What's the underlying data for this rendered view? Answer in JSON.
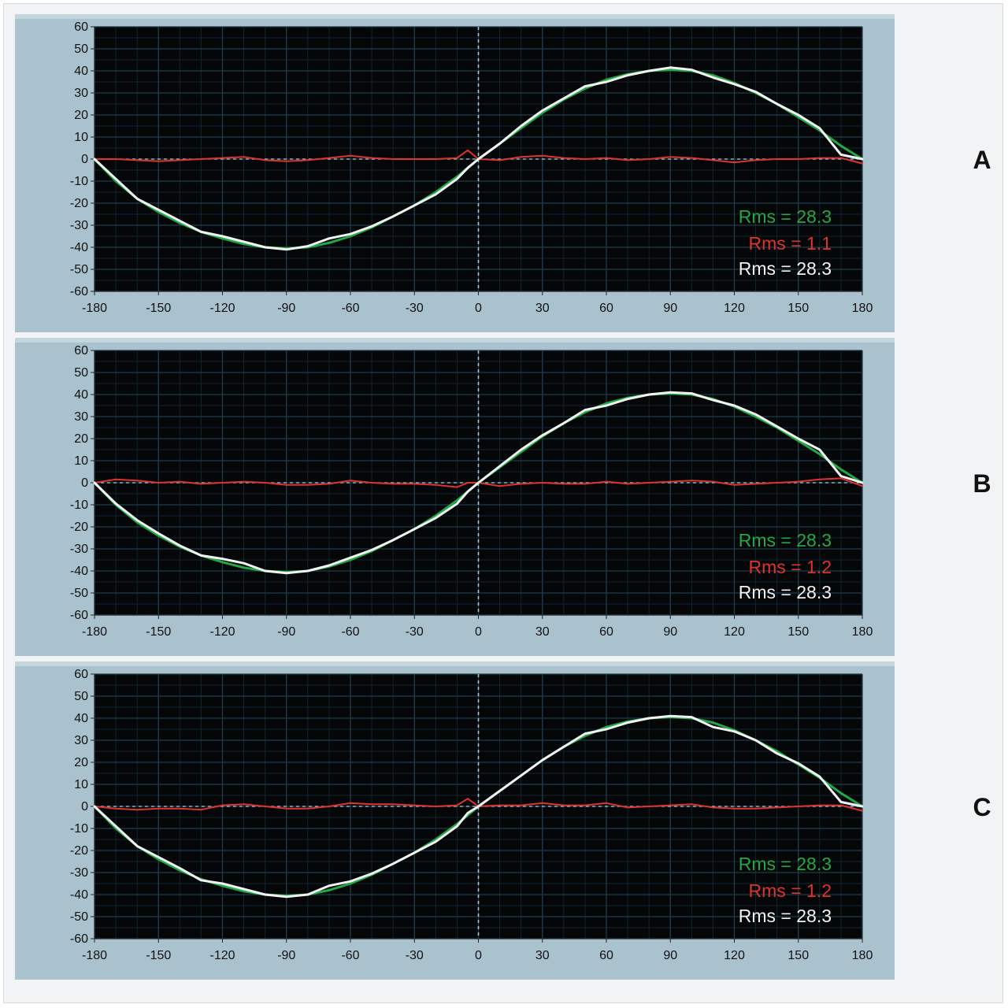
{
  "figure": {
    "panel_labels": [
      "A",
      "B",
      "C"
    ]
  },
  "colors": {
    "plot_background": "#050607",
    "frame": "#a9c2ce",
    "grid": "#1d3e4c",
    "green": "#22a845",
    "red": "#e0332e",
    "white": "#f2f2f2",
    "zero_line": "#9fc7d9"
  },
  "chart_data": [
    {
      "type": "line",
      "panel": "A",
      "xlim": [
        -180,
        180
      ],
      "ylim": [
        -60,
        60
      ],
      "xticks": [
        -180,
        -150,
        -120,
        -90,
        -60,
        -30,
        0,
        30,
        60,
        90,
        120,
        150,
        180
      ],
      "yticks": [
        60,
        50,
        40,
        30,
        20,
        10,
        0,
        -10,
        -20,
        -30,
        -40,
        -50,
        -60
      ],
      "grid": true,
      "x": [
        -180,
        -170,
        -160,
        -150,
        -140,
        -130,
        -120,
        -110,
        -100,
        -90,
        -80,
        -70,
        -60,
        -50,
        -40,
        -30,
        -20,
        -10,
        -5,
        0,
        10,
        20,
        30,
        40,
        50,
        60,
        70,
        80,
        90,
        100,
        110,
        120,
        130,
        140,
        150,
        160,
        170,
        180
      ],
      "series": [
        {
          "color": "green",
          "values": [
            0,
            -10,
            -18,
            -24,
            -29,
            -33,
            -36,
            -38.5,
            -40,
            -40.5,
            -40,
            -38,
            -35,
            -31,
            -26,
            -21,
            -15,
            -8,
            -4,
            0,
            7,
            14,
            21,
            27,
            32,
            36,
            38.5,
            40,
            40.5,
            40,
            38,
            34.5,
            30,
            25,
            19,
            13,
            6,
            0
          ]
        },
        {
          "color": "red",
          "values": [
            0,
            0,
            -0.5,
            -1,
            -0.5,
            0,
            0.5,
            1,
            -0.5,
            -1,
            -0.5,
            0.5,
            1.5,
            0.5,
            0,
            0,
            0,
            0.5,
            4,
            0,
            -0.5,
            1,
            1.5,
            0.5,
            0,
            0.5,
            -0.5,
            0,
            1,
            0.5,
            -0.5,
            -1.5,
            -0.5,
            0,
            0,
            0.5,
            0.5,
            -2
          ]
        },
        {
          "color": "white",
          "values": [
            0,
            -9,
            -18,
            -23,
            -28,
            -33,
            -35,
            -37.5,
            -40,
            -41,
            -39.5,
            -36,
            -34,
            -30.5,
            -26,
            -21,
            -16,
            -9,
            -4,
            0,
            7,
            15,
            22,
            27.5,
            33,
            35,
            38,
            40,
            41.5,
            40.5,
            37,
            34,
            30.5,
            25,
            20,
            14,
            2,
            0
          ]
        }
      ],
      "annotations": [
        {
          "text": "Rms = 28.3",
          "color": "green"
        },
        {
          "text": "Rms = 1.1",
          "color": "red"
        },
        {
          "text": "Rms = 28.3",
          "color": "white"
        }
      ]
    },
    {
      "type": "line",
      "panel": "B",
      "xlim": [
        -180,
        180
      ],
      "ylim": [
        -60,
        60
      ],
      "xticks": [
        -180,
        -150,
        -120,
        -90,
        -60,
        -30,
        0,
        30,
        60,
        90,
        120,
        150,
        180
      ],
      "yticks": [
        60,
        50,
        40,
        30,
        20,
        10,
        0,
        -10,
        -20,
        -30,
        -40,
        -50,
        -60
      ],
      "grid": true,
      "x": [
        -180,
        -170,
        -160,
        -150,
        -140,
        -130,
        -120,
        -110,
        -100,
        -90,
        -80,
        -70,
        -60,
        -50,
        -40,
        -30,
        -20,
        -10,
        -5,
        0,
        10,
        20,
        30,
        40,
        50,
        60,
        70,
        80,
        90,
        100,
        110,
        120,
        130,
        140,
        150,
        160,
        170,
        180
      ],
      "series": [
        {
          "color": "green",
          "values": [
            0,
            -10,
            -18,
            -24,
            -29,
            -33,
            -36,
            -38.5,
            -40,
            -40.5,
            -40,
            -38,
            -35,
            -31,
            -26,
            -21,
            -15,
            -8,
            -4,
            0,
            7,
            14,
            21,
            27,
            32,
            36,
            38.5,
            40,
            40.5,
            40,
            38,
            34.5,
            30,
            25,
            19,
            13,
            6,
            0
          ]
        },
        {
          "color": "red",
          "values": [
            0,
            1.5,
            1,
            0,
            0.5,
            -0.5,
            0,
            0.5,
            0,
            -1,
            -1,
            -0.5,
            1,
            0,
            -0.5,
            -0.5,
            -1,
            -2,
            0,
            0,
            -1.5,
            -0.5,
            0,
            -0.5,
            -0.5,
            0.5,
            -0.5,
            0,
            0.5,
            1,
            0.5,
            -1,
            -0.5,
            0,
            0.5,
            1.5,
            2,
            -1.5
          ]
        },
        {
          "color": "white",
          "values": [
            0,
            -9.5,
            -17,
            -23,
            -28.5,
            -33,
            -34.5,
            -36.5,
            -40,
            -41,
            -40,
            -37.5,
            -34,
            -30.5,
            -26,
            -21,
            -16,
            -9.5,
            -4,
            0,
            7.5,
            15,
            21.5,
            27,
            33,
            35,
            38,
            40,
            41,
            40.5,
            37.5,
            35,
            31,
            25.5,
            20,
            15,
            3,
            0
          ]
        }
      ],
      "annotations": [
        {
          "text": "Rms = 28.3",
          "color": "green"
        },
        {
          "text": "Rms = 1.2",
          "color": "red"
        },
        {
          "text": "Rms = 28.3",
          "color": "white"
        }
      ]
    },
    {
      "type": "line",
      "panel": "C",
      "xlim": [
        -180,
        180
      ],
      "ylim": [
        -60,
        60
      ],
      "xticks": [
        -180,
        -150,
        -120,
        -90,
        -60,
        -30,
        0,
        30,
        60,
        90,
        120,
        150,
        180
      ],
      "yticks": [
        60,
        50,
        40,
        30,
        20,
        10,
        0,
        -10,
        -20,
        -30,
        -40,
        -50,
        -60
      ],
      "grid": true,
      "x": [
        -180,
        -170,
        -160,
        -150,
        -140,
        -130,
        -120,
        -110,
        -100,
        -90,
        -80,
        -70,
        -60,
        -50,
        -40,
        -30,
        -20,
        -10,
        -5,
        0,
        10,
        20,
        30,
        40,
        50,
        60,
        70,
        80,
        90,
        100,
        110,
        120,
        130,
        140,
        150,
        160,
        170,
        180
      ],
      "series": [
        {
          "color": "green",
          "values": [
            0,
            -10,
            -18,
            -24,
            -29,
            -33,
            -36,
            -38.5,
            -40,
            -40.5,
            -40,
            -38,
            -35,
            -31,
            -26,
            -21,
            -15,
            -8,
            -4,
            0,
            7,
            14,
            21,
            27,
            32,
            36,
            38.5,
            40,
            40.5,
            40,
            38,
            34.5,
            30,
            25,
            19,
            13,
            6,
            0
          ]
        },
        {
          "color": "red",
          "values": [
            0,
            -1,
            -1.5,
            -1,
            -1,
            -1.5,
            0.5,
            1,
            0,
            -1,
            -1,
            0,
            1.5,
            1,
            1,
            0.5,
            0,
            0.5,
            3.5,
            0,
            0.5,
            0.5,
            1.5,
            0.5,
            0.5,
            1.5,
            -0.5,
            0,
            0.5,
            1,
            -0.5,
            -1,
            -1,
            -0.5,
            0,
            0.5,
            0.5,
            -2
          ]
        },
        {
          "color": "white",
          "values": [
            0,
            -9,
            -18,
            -23,
            -28,
            -33.5,
            -35,
            -37.5,
            -40,
            -41,
            -40,
            -36,
            -34,
            -30.5,
            -26,
            -21,
            -16,
            -9,
            -3,
            0,
            7,
            14,
            21,
            27,
            33,
            35,
            38,
            40,
            41,
            40.5,
            36,
            34,
            30,
            24,
            19.5,
            13.5,
            2,
            0
          ]
        }
      ],
      "annotations": [
        {
          "text": "Rms = 28.3",
          "color": "green"
        },
        {
          "text": "Rms = 1.2",
          "color": "red"
        },
        {
          "text": "Rms = 28.3",
          "color": "white"
        }
      ]
    }
  ]
}
